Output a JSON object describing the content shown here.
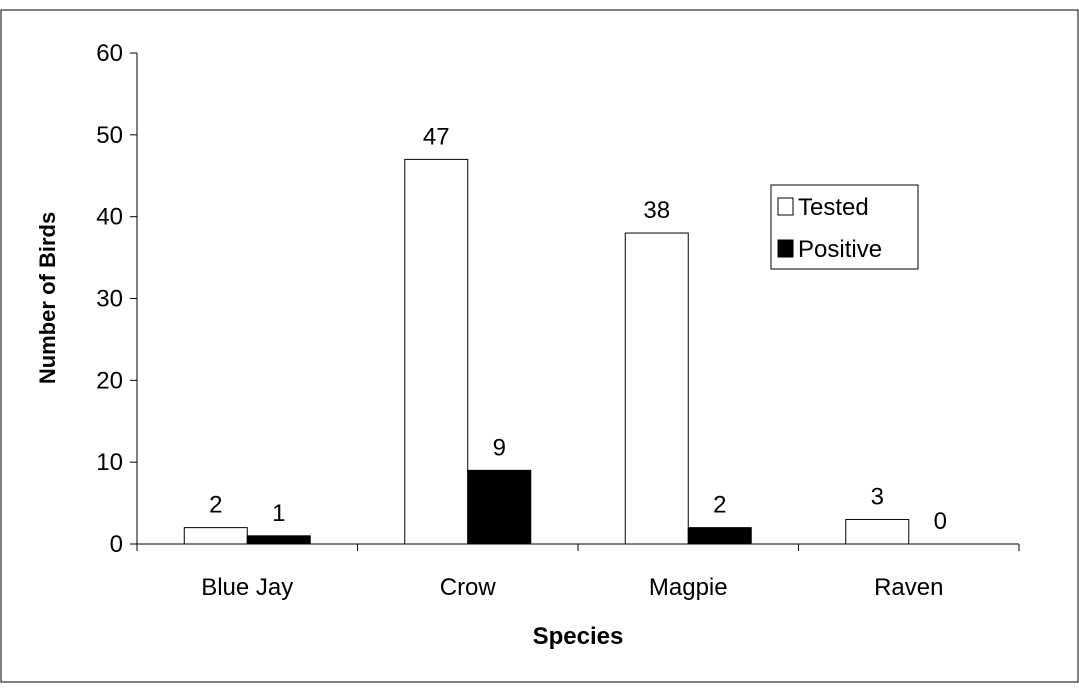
{
  "chart_data": {
    "type": "bar",
    "title": "",
    "xlabel": "Species",
    "ylabel": "Number of Birds",
    "categories": [
      "Blue Jay",
      "Crow",
      "Magpie",
      "Raven"
    ],
    "series": [
      {
        "name": "Tested",
        "values": [
          2,
          47,
          38,
          3
        ],
        "color": "#ffffff"
      },
      {
        "name": "Positive",
        "values": [
          1,
          9,
          2,
          0
        ],
        "color": "#000000"
      }
    ],
    "ylim": [
      0,
      60
    ],
    "yticks": [
      0,
      10,
      20,
      30,
      40,
      50,
      60
    ],
    "data_labels": true,
    "grid": false,
    "legend_position": "right"
  }
}
